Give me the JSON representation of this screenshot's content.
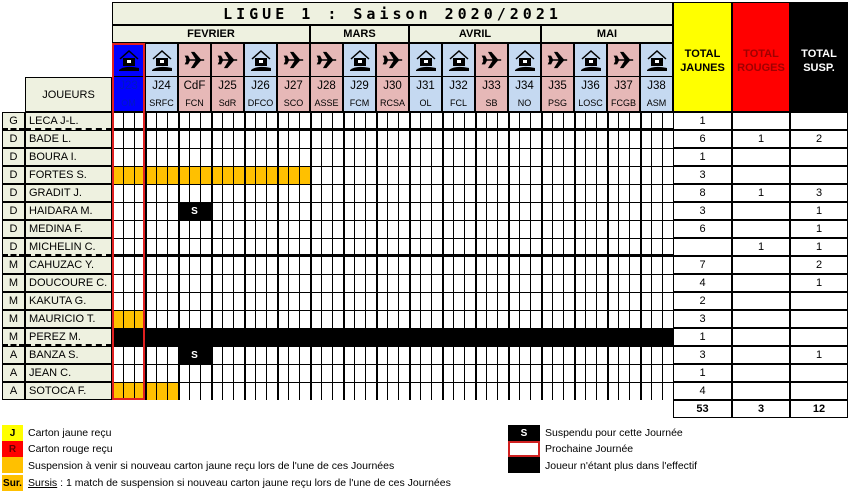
{
  "title": "LIGUE 1 : Saison 2020/2021",
  "months": [
    {
      "label": "FEVRIER",
      "span": 6
    },
    {
      "label": "MARS",
      "span": 3
    },
    {
      "label": "AVRIL",
      "span": 4
    },
    {
      "label": "MAI",
      "span": 4
    }
  ],
  "players_header": "JOUEURS",
  "matches": [
    {
      "day": "J23",
      "team": "OM",
      "venue": "home",
      "icon": "home-icon",
      "next": true
    },
    {
      "day": "J24",
      "team": "SRFC",
      "venue": "home",
      "icon": "home-icon"
    },
    {
      "day": "CdF",
      "team": "FCN",
      "venue": "away",
      "icon": "plane-icon"
    },
    {
      "day": "J25",
      "team": "SdR",
      "venue": "away",
      "icon": "plane-icon"
    },
    {
      "day": "J26",
      "team": "DFCO",
      "venue": "home",
      "icon": "home-icon"
    },
    {
      "day": "J27",
      "team": "SCO",
      "venue": "away",
      "icon": "plane-icon"
    },
    {
      "day": "J28",
      "team": "ASSE",
      "venue": "away",
      "icon": "plane-icon"
    },
    {
      "day": "J29",
      "team": "FCM",
      "venue": "home",
      "icon": "home-icon"
    },
    {
      "day": "J30",
      "team": "RCSA",
      "venue": "away",
      "icon": "plane-icon"
    },
    {
      "day": "J31",
      "team": "OL",
      "venue": "home",
      "icon": "home-icon"
    },
    {
      "day": "J32",
      "team": "FCL",
      "venue": "home",
      "icon": "home-icon"
    },
    {
      "day": "J33",
      "team": "SB",
      "venue": "away",
      "icon": "plane-icon"
    },
    {
      "day": "J34",
      "team": "NO",
      "venue": "home",
      "icon": "home-icon"
    },
    {
      "day": "J35",
      "team": "PSG",
      "venue": "away",
      "icon": "plane-icon"
    },
    {
      "day": "J36",
      "team": "LOSC",
      "venue": "home",
      "icon": "home-icon"
    },
    {
      "day": "J37",
      "team": "FCGB",
      "venue": "away",
      "icon": "plane-icon"
    },
    {
      "day": "J38",
      "team": "ASM",
      "venue": "home",
      "icon": "home-icon"
    }
  ],
  "totals_headers": {
    "yellow": "TOTAL JAUNES",
    "red": "TOTAL ROUGES",
    "susp": "TOTAL SUSP."
  },
  "colors": {
    "yellow": "#ffff00",
    "red": "#ff0000",
    "black": "#000000",
    "orange": "#ffc000",
    "home": "#c5d9f1",
    "away": "#e6b8b7",
    "next": "#0000ff"
  },
  "players": [
    {
      "pos": "G",
      "name": "LECA J-L.",
      "yellow": "1",
      "red": "",
      "susp": "",
      "group_end": true
    },
    {
      "pos": "D",
      "name": "BADE L.",
      "yellow": "6",
      "red": "1",
      "susp": "2"
    },
    {
      "pos": "D",
      "name": "BOURA I.",
      "yellow": "1",
      "red": "",
      "susp": ""
    },
    {
      "pos": "D",
      "name": "FORTES S.",
      "yellow": "3",
      "red": "",
      "susp": "",
      "warning_matches": [
        0,
        1,
        2,
        3,
        4,
        5
      ]
    },
    {
      "pos": "D",
      "name": "GRADIT J.",
      "yellow": "8",
      "red": "1",
      "susp": "3"
    },
    {
      "pos": "D",
      "name": "HAIDARA M.",
      "yellow": "3",
      "red": "",
      "susp": "1",
      "suspended_match": 2
    },
    {
      "pos": "D",
      "name": "MEDINA F.",
      "yellow": "6",
      "red": "",
      "susp": "1"
    },
    {
      "pos": "D",
      "name": "MICHELIN C.",
      "yellow": "",
      "red": "1",
      "susp": "1",
      "group_end": true
    },
    {
      "pos": "M",
      "name": "CAHUZAC Y.",
      "yellow": "7",
      "red": "",
      "susp": "2"
    },
    {
      "pos": "M",
      "name": "DOUCOURE C.",
      "yellow": "4",
      "red": "",
      "susp": "1"
    },
    {
      "pos": "M",
      "name": "KAKUTA G.",
      "yellow": "2",
      "red": "",
      "susp": ""
    },
    {
      "pos": "M",
      "name": "MAURICIO T.",
      "yellow": "3",
      "red": "",
      "susp": "",
      "warning_matches": [
        0
      ]
    },
    {
      "pos": "M",
      "name": "PEREZ M.",
      "yellow": "1",
      "red": "",
      "susp": "",
      "inactive": true,
      "group_end": true
    },
    {
      "pos": "A",
      "name": "BANZA S.",
      "yellow": "3",
      "red": "",
      "susp": "1",
      "suspended_match": 2
    },
    {
      "pos": "A",
      "name": "JEAN C.",
      "yellow": "1",
      "red": "",
      "susp": ""
    },
    {
      "pos": "A",
      "name": "SOTOCA F.",
      "yellow": "4",
      "red": "",
      "susp": "",
      "warning_matches": [
        0,
        1
      ]
    }
  ],
  "suspended_mark": "S",
  "grand_totals": {
    "yellow": "53",
    "red": "3",
    "susp": "12"
  },
  "legend": {
    "yellow_code": "J",
    "yellow_text": "Carton jaune reçu",
    "red_code": "R",
    "red_text": "Carton rouge reçu",
    "orange_text": "Suspension à venir si nouveau carton jaune reçu lors de l'une de ces Journées",
    "sursis_code": "Sur.",
    "sursis_word": "Sursis",
    "sursis_text": " : 1 match de suspension si nouveau carton jaune reçu lors de l'une de ces Journées",
    "susp_code": "S",
    "susp_text": "Suspendu pour cette Journée",
    "next_text": "Prochaine Journée",
    "inactive_text": "Joueur n'étant plus dans l'effectif"
  }
}
